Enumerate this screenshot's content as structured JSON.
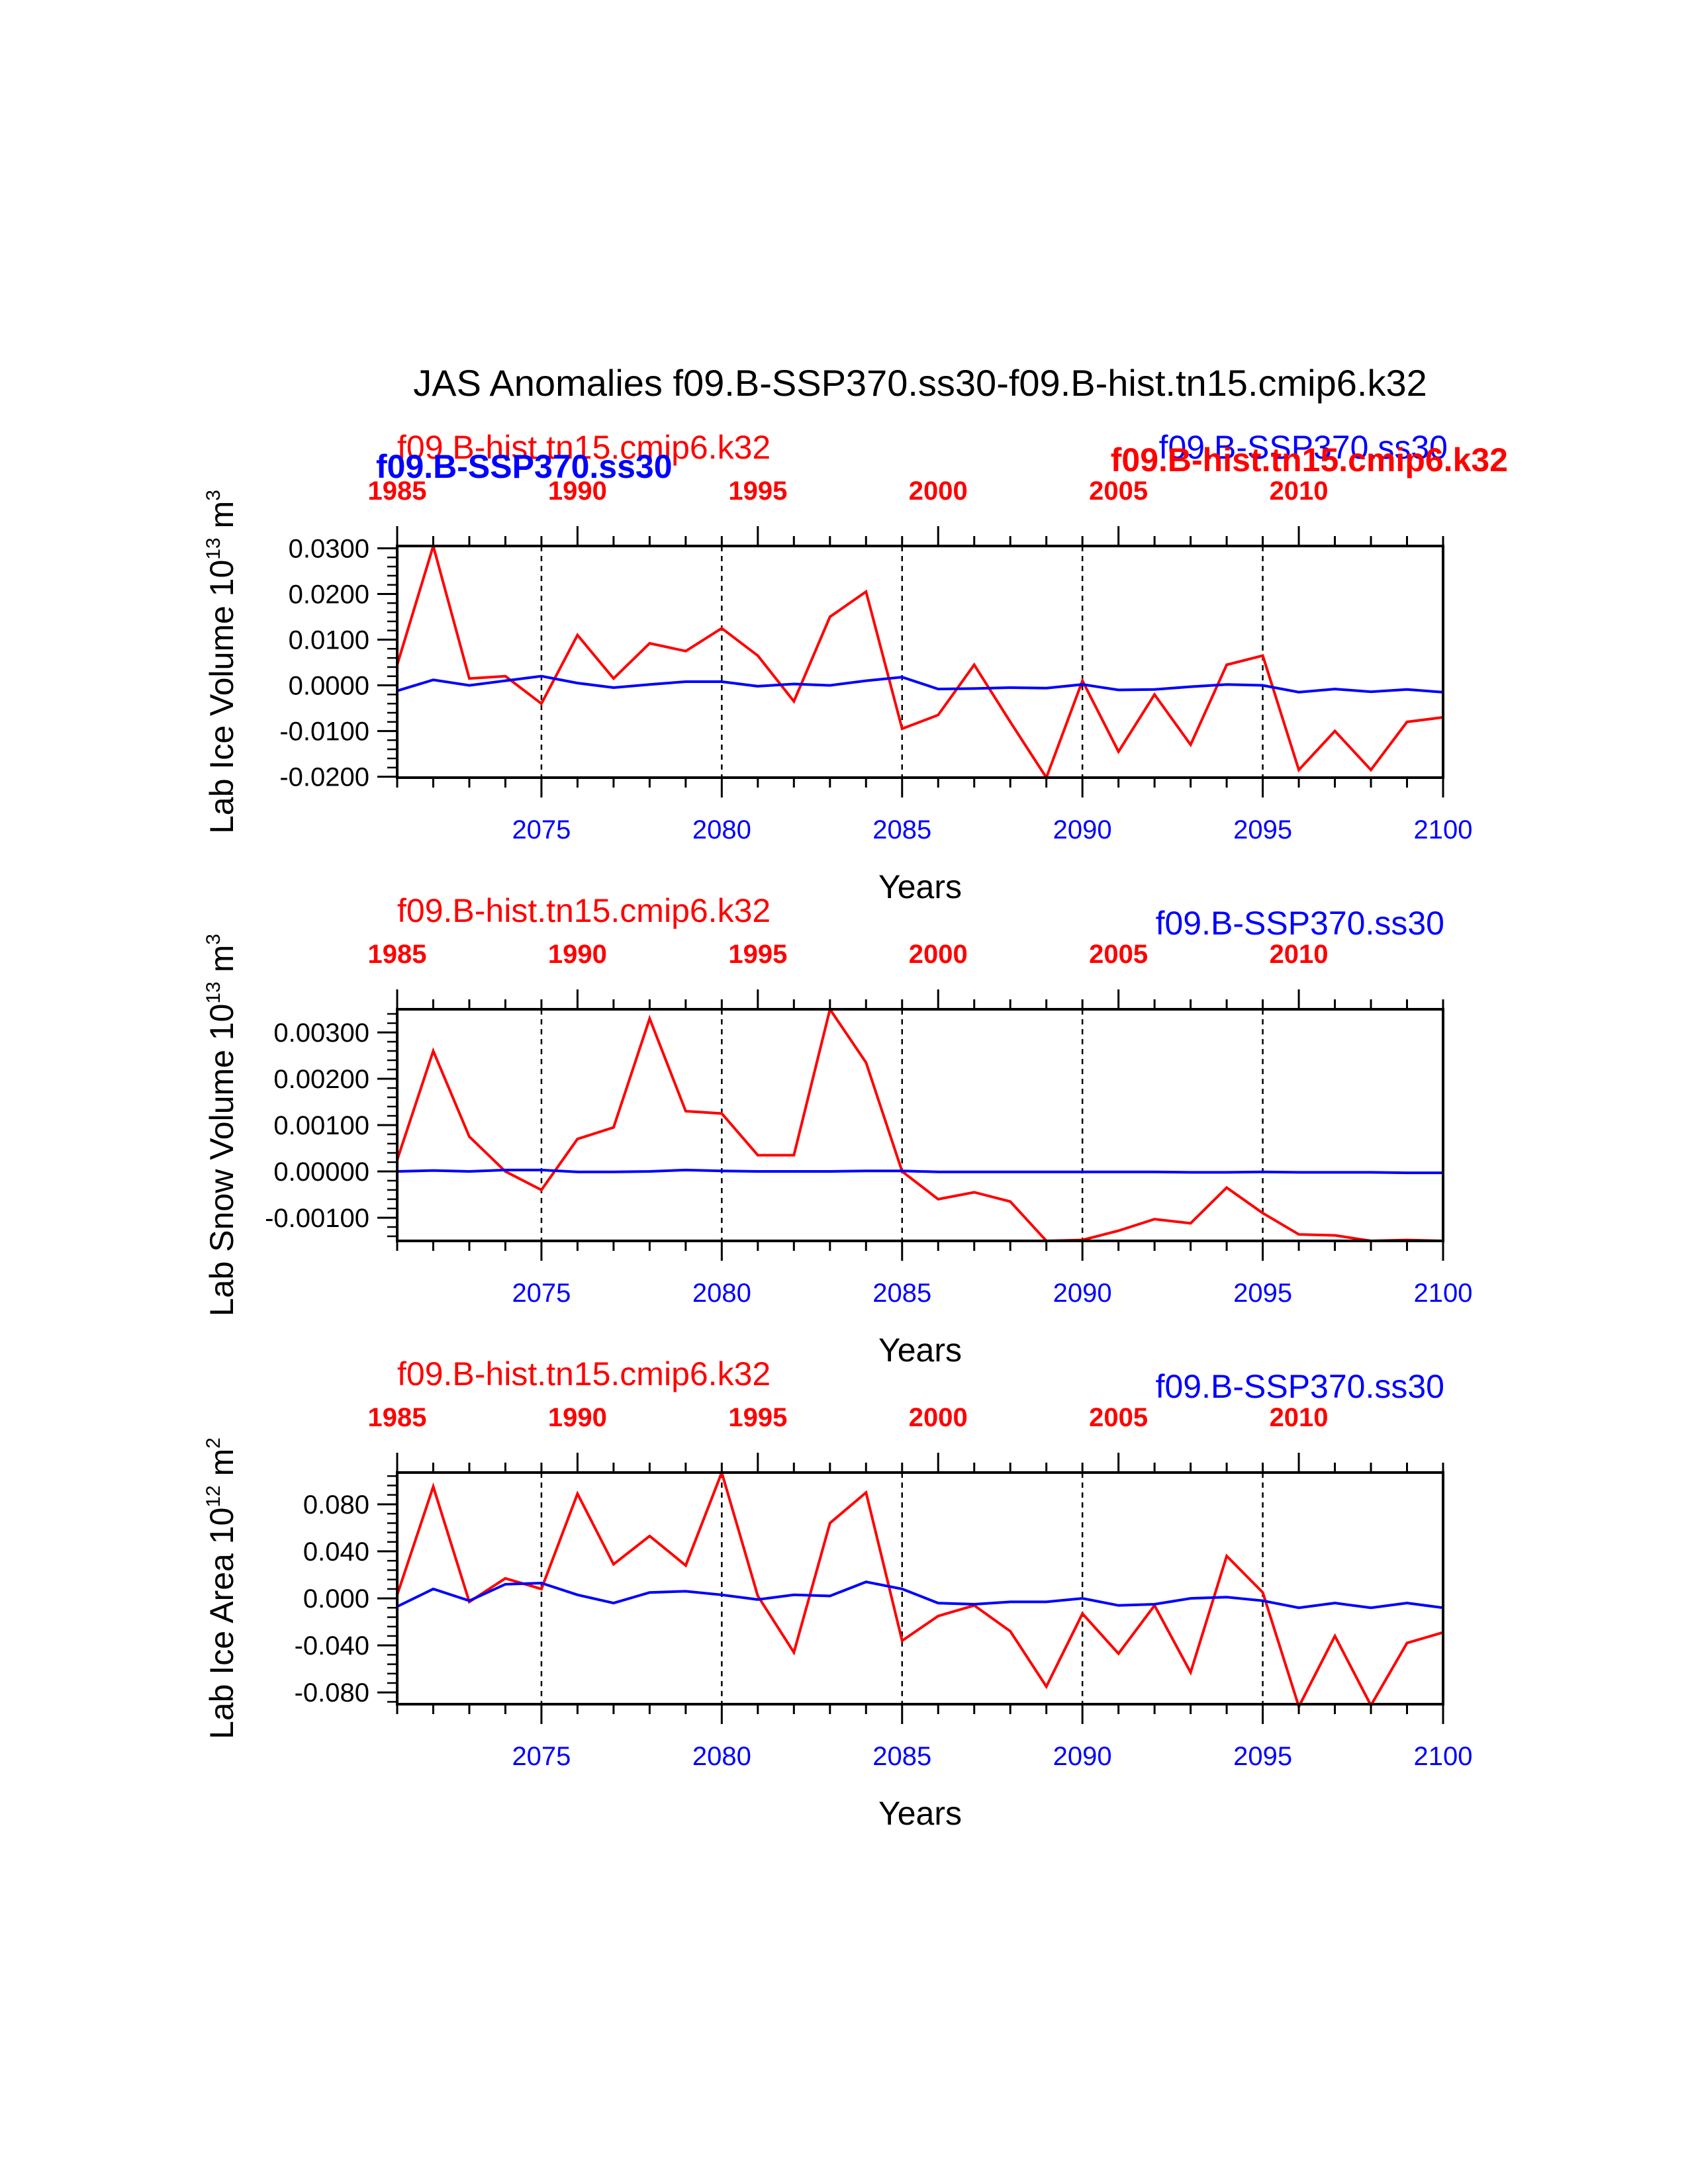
{
  "title": "JAS Anomalies f09.B-SSP370.ss30-f09.B-hist.tn15.cmip6.k32",
  "colors": {
    "red": "#ff0000",
    "blue": "#0000ff",
    "black": "#000000"
  },
  "top_overlay": {
    "red_left": "f09.B-hist.tn15.cmip6.k32",
    "blue_left_bold": "f09.B-SSP370.ss30",
    "blue_right": "f09.B-SSP370.ss30",
    "red_right_bold": "f09.B-hist.tn15.cmip6.k32"
  },
  "chart_data": [
    {
      "type": "line",
      "title": "",
      "ylabel": "Lab Ice Volume 10^13 m^3",
      "ylabel_main": "Lab Ice Volume 10",
      "ylabel_exp": "13",
      "ylabel_unit": " m",
      "ylabel_unit_exp": "3",
      "xlabel": "Years",
      "legend_left": "f09.B-hist.tn15.cmip6.k32",
      "legend_right": "f09.B-SSP370.ss30",
      "ylim": [
        -0.0202,
        0.0305
      ],
      "y_ticks": [
        -0.02,
        -0.01,
        0.0,
        0.01,
        0.02,
        0.03
      ],
      "y_tick_labels": [
        "-0.0200",
        "-0.0100",
        "0.0000",
        "0.0100",
        "0.0200",
        "0.0300"
      ],
      "y_minor": 0.002,
      "bottom_axis": {
        "range": [
          2071,
          2100
        ],
        "ticks": [
          2075,
          2080,
          2085,
          2090,
          2095,
          2100
        ],
        "color": "#0000ff"
      },
      "top_axis": {
        "range": [
          1985,
          2014
        ],
        "ticks": [
          1985,
          1990,
          1995,
          2000,
          2005,
          2010
        ],
        "color": "#ff0000"
      },
      "dashed_x": [
        2075,
        2080,
        2085,
        2090,
        2095
      ],
      "x": [
        2071,
        2072,
        2073,
        2074,
        2075,
        2076,
        2077,
        2078,
        2079,
        2080,
        2081,
        2082,
        2083,
        2084,
        2085,
        2086,
        2087,
        2088,
        2089,
        2090,
        2091,
        2092,
        2093,
        2094,
        2095,
        2096,
        2097,
        2098,
        2099,
        2100
      ],
      "series": [
        {
          "color": "#ff0000",
          "values": [
            0.0045,
            0.0305,
            0.0015,
            0.002,
            -0.004,
            0.011,
            0.0015,
            0.0092,
            0.0075,
            0.0125,
            0.0065,
            -0.0035,
            0.015,
            0.0205,
            -0.0095,
            -0.0065,
            0.0045,
            -0.008,
            -0.0202,
            0.001,
            -0.0145,
            -0.002,
            -0.013,
            0.0045,
            0.0065,
            -0.0185,
            -0.01,
            -0.0185,
            -0.008,
            -0.007
          ]
        },
        {
          "color": "#0000ff",
          "values": [
            -0.0012,
            0.0012,
            0.0,
            0.001,
            0.002,
            0.0005,
            -0.0005,
            0.0002,
            0.0008,
            0.0008,
            -0.0002,
            0.0003,
            0.0,
            0.001,
            0.0018,
            -0.0008,
            -0.0007,
            -0.0005,
            -0.0006,
            0.0002,
            -0.001,
            -0.0009,
            -0.0003,
            0.0002,
            0.0,
            -0.0015,
            -0.0008,
            -0.0014,
            -0.0009,
            -0.0015
          ]
        }
      ]
    },
    {
      "type": "line",
      "title": "",
      "ylabel": "Lab Snow Volume 10^13 m^3",
      "ylabel_main": "Lab Snow Volume 10",
      "ylabel_exp": "13",
      "ylabel_unit": " m",
      "ylabel_unit_exp": "3",
      "xlabel": "Years",
      "legend_left": "f09.B-hist.tn15.cmip6.k32",
      "legend_right": "f09.B-SSP370.ss30",
      "ylim": [
        -0.0015,
        0.0035
      ],
      "y_ticks": [
        -0.001,
        0.0,
        0.001,
        0.002,
        0.003
      ],
      "y_tick_labels": [
        "-0.00100",
        "0.00000",
        "0.00100",
        "0.00200",
        "0.00300"
      ],
      "y_minor": 0.0002,
      "bottom_axis": {
        "range": [
          2071,
          2100
        ],
        "ticks": [
          2075,
          2080,
          2085,
          2090,
          2095,
          2100
        ],
        "color": "#0000ff"
      },
      "top_axis": {
        "range": [
          1985,
          2014
        ],
        "ticks": [
          1985,
          1990,
          1995,
          2000,
          2005,
          2010
        ],
        "color": "#ff0000"
      },
      "dashed_x": [
        2075,
        2080,
        2085,
        2090,
        2095
      ],
      "x": [
        2071,
        2072,
        2073,
        2074,
        2075,
        2076,
        2077,
        2078,
        2079,
        2080,
        2081,
        2082,
        2083,
        2084,
        2085,
        2086,
        2087,
        2088,
        2089,
        2090,
        2091,
        2092,
        2093,
        2094,
        2095,
        2096,
        2097,
        2098,
        2099,
        2100
      ],
      "series": [
        {
          "color": "#ff0000",
          "values": [
            0.00025,
            0.0026,
            0.00075,
            0.0,
            -0.0004,
            0.0007,
            0.00095,
            0.0033,
            0.0013,
            0.00125,
            0.00035,
            0.00035,
            0.0035,
            0.00235,
            0.0,
            -0.0006,
            -0.00045,
            -0.00065,
            -0.0015,
            -0.00148,
            -0.00128,
            -0.00103,
            -0.00112,
            -0.00035,
            -0.0009,
            -0.00136,
            -0.00138,
            -0.0015,
            -0.00148,
            -0.0015
          ]
        },
        {
          "color": "#0000ff",
          "values": [
            0.0,
            2e-05,
            0.0,
            3e-05,
            3e-05,
            -1e-05,
            -1e-05,
            0.0,
            3e-05,
            1e-05,
            0.0,
            0.0,
            0.0,
            1e-05,
            1e-05,
            -1e-05,
            -1e-05,
            -1e-05,
            -1e-05,
            -1e-05,
            -1e-05,
            -1e-05,
            -2e-05,
            -2e-05,
            -1e-05,
            -2e-05,
            -2e-05,
            -2e-05,
            -3e-05,
            -3e-05
          ]
        }
      ]
    },
    {
      "type": "line",
      "title": "",
      "ylabel": "Lab Ice Area 10^12 m^2",
      "ylabel_main": "Lab Ice Area 10",
      "ylabel_exp": "12",
      "ylabel_unit": " m",
      "ylabel_unit_exp": "2",
      "xlabel": "Years",
      "legend_left": "f09.B-hist.tn15.cmip6.k32",
      "legend_right": "f09.B-SSP370.ss30",
      "ylim": [
        -0.09,
        0.107
      ],
      "y_ticks": [
        -0.08,
        -0.04,
        0.0,
        0.04,
        0.08
      ],
      "y_tick_labels": [
        "-0.080",
        "-0.040",
        "0.000",
        "0.040",
        "0.080"
      ],
      "y_minor": 0.008,
      "bottom_axis": {
        "range": [
          2071,
          2100
        ],
        "ticks": [
          2075,
          2080,
          2085,
          2090,
          2095,
          2100
        ],
        "color": "#0000ff"
      },
      "top_axis": {
        "range": [
          1985,
          2014
        ],
        "ticks": [
          1985,
          1990,
          1995,
          2000,
          2005,
          2010
        ],
        "color": "#ff0000"
      },
      "dashed_x": [
        2075,
        2080,
        2085,
        2090,
        2095
      ],
      "x": [
        2071,
        2072,
        2073,
        2074,
        2075,
        2076,
        2077,
        2078,
        2079,
        2080,
        2081,
        2082,
        2083,
        2084,
        2085,
        2086,
        2087,
        2088,
        2089,
        2090,
        2091,
        2092,
        2093,
        2094,
        2095,
        2096,
        2097,
        2098,
        2099,
        2100
      ],
      "series": [
        {
          "color": "#ff0000",
          "values": [
            0.003,
            0.095,
            -0.003,
            0.017,
            0.008,
            0.089,
            0.029,
            0.053,
            0.028,
            0.107,
            0.002,
            -0.046,
            0.064,
            0.09,
            -0.036,
            -0.015,
            -0.006,
            -0.028,
            -0.075,
            -0.013,
            -0.047,
            -0.006,
            -0.063,
            0.036,
            0.005,
            -0.092,
            -0.032,
            -0.091,
            -0.038,
            -0.029
          ]
        },
        {
          "color": "#0000ff",
          "values": [
            -0.007,
            0.008,
            -0.002,
            0.012,
            0.013,
            0.003,
            -0.004,
            0.005,
            0.006,
            0.003,
            -0.001,
            0.003,
            0.002,
            0.014,
            0.008,
            -0.004,
            -0.005,
            -0.003,
            -0.003,
            0.0,
            -0.006,
            -0.005,
            0.0,
            0.001,
            -0.002,
            -0.008,
            -0.004,
            -0.008,
            -0.004,
            -0.008
          ]
        }
      ]
    }
  ]
}
